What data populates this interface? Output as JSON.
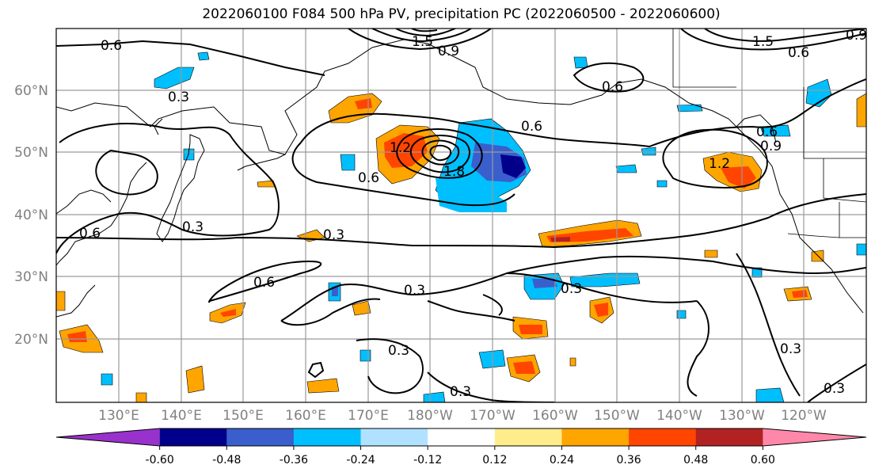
{
  "title": "2022060100 F084 500 hPa PV, precipitation PC (2022060500 - 2022060600)",
  "lat_labels": [
    "60°N",
    "50°N",
    "40°N",
    "30°N",
    "20°N"
  ],
  "lon_labels": [
    "130°E",
    "140°E",
    "150°E",
    "160°E",
    "170°E",
    "180°W",
    "170°W",
    "160°W",
    "150°W",
    "140°W",
    "130°W",
    "120°W"
  ],
  "colorbar": {
    "ticks": [
      "-0.60",
      "-0.48",
      "-0.36",
      "-0.24",
      "-0.12",
      "0.12",
      "0.24",
      "0.36",
      "0.48",
      "0.60"
    ],
    "colors": [
      "#9932cc",
      "#00008b",
      "#3a5fcd",
      "#00bfff",
      "#b0e2ff",
      "#ffffff",
      "#ffec8b",
      "#ffa500",
      "#ff4500",
      "#b22222",
      "#ff88aa"
    ]
  },
  "contour_labels": [
    "0.6",
    "0.3",
    "1.5",
    "0.9",
    "1.2",
    "1.8",
    "0.3",
    "0.6",
    "0.6",
    "0.3",
    "0.6",
    "0.3",
    "0.3",
    "0.3",
    "0.3",
    "0.6",
    "0.6",
    "1.2",
    "0.9",
    "1.5",
    "0.6",
    "0.9",
    "0.6",
    "0.3",
    "0.3"
  ]
}
